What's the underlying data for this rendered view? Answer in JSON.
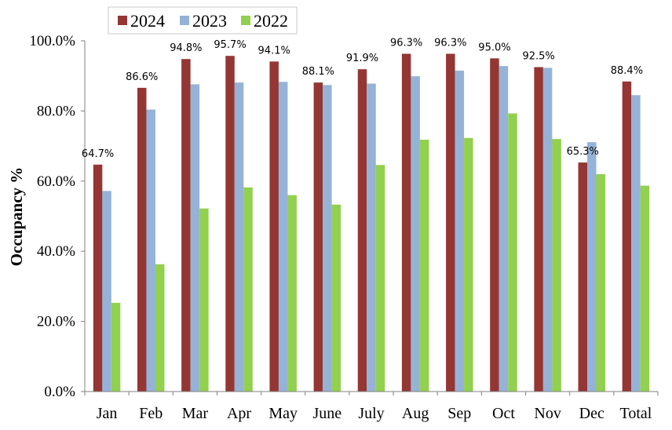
{
  "chart_data": {
    "type": "bar",
    "categories": [
      "Jan",
      "Feb",
      "Mar",
      "Apr",
      "May",
      "June",
      "July",
      "Aug",
      "Sep",
      "Oct",
      "Nov",
      "Dec",
      "Total"
    ],
    "series": [
      {
        "name": "2024",
        "color": "#943634",
        "values": [
          64.7,
          86.6,
          94.8,
          95.7,
          94.1,
          88.1,
          91.9,
          96.3,
          96.3,
          95.0,
          92.5,
          65.3,
          88.4
        ]
      },
      {
        "name": "2023",
        "color": "#95B3D7",
        "values": [
          57.2,
          80.4,
          87.6,
          88.1,
          88.3,
          87.4,
          87.8,
          89.9,
          91.5,
          92.8,
          92.3,
          71.1,
          84.5
        ]
      },
      {
        "name": "2022",
        "color": "#92D050",
        "values": [
          25.3,
          36.3,
          52.2,
          58.2,
          56.0,
          53.3,
          64.6,
          71.8,
          72.3,
          79.3,
          72.0,
          62.0,
          58.7
        ]
      }
    ],
    "data_labels": [
      "64.7%",
      "86.6%",
      "94.8%",
      "95.7%",
      "94.1%",
      "88.1%",
      "91.9%",
      "96.3%",
      "96.3%",
      "95.0%",
      "92.5%",
      "65.3%",
      "88.4%"
    ],
    "y_ticks": [
      "0.0%",
      "20.0%",
      "40.0%",
      "60.0%",
      "80.0%",
      "100.0%"
    ],
    "ylabel": "Occupancy %",
    "xlabel": "",
    "ylim": [
      0,
      100
    ],
    "grid": false,
    "legend_position": "top-left"
  }
}
